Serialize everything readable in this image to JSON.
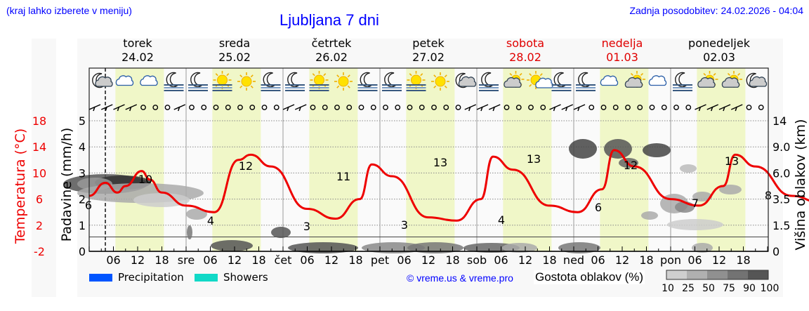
{
  "header": {
    "menu_hint": "(kraj lahko izberete v meniju)",
    "title": "Ljubljana 7 dni",
    "last_update": "Zadnja posodobitev: 24.02.2026 - 04:04"
  },
  "days": [
    {
      "name": "torek",
      "date": "24.02",
      "weekend": false
    },
    {
      "name": "sreda",
      "date": "25.02",
      "weekend": false
    },
    {
      "name": "četrtek",
      "date": "26.02",
      "weekend": false
    },
    {
      "name": "petek",
      "date": "27.02",
      "weekend": false
    },
    {
      "name": "sobota",
      "date": "28.02",
      "weekend": true
    },
    {
      "name": "nedelja",
      "date": "01.03",
      "weekend": true
    },
    {
      "name": "ponedeljek",
      "date": "02.03",
      "weekend": false
    }
  ],
  "weather_icons": [
    "night-partly-cloudy",
    "cloudy",
    "cloudy",
    "night-fog",
    "night-fog",
    "sun-fog",
    "sun",
    "night-fog",
    "night-fog",
    "sun-fog",
    "sun",
    "night-fog",
    "night-fog",
    "sun-fog",
    "sun",
    "night-partly-cloudy",
    "night-fog",
    "partly-cloudy",
    "sun-small-cloud",
    "night-fog",
    "night-fog",
    "cloudy",
    "partly-cloudy",
    "cloudy",
    "night-fog",
    "partly-cloudy",
    "partly-cloudy",
    "night-partly-cloudy"
  ],
  "x_axis": {
    "labels": [
      "06",
      "12",
      "18",
      "sre",
      "06",
      "12",
      "18",
      "čet",
      "06",
      "12",
      "18",
      "pet",
      "06",
      "12",
      "18",
      "sob",
      "06",
      "12",
      "18",
      "ned",
      "06",
      "12",
      "18",
      "pon",
      "06",
      "12",
      "18"
    ]
  },
  "axes": {
    "temperature_label": "Temperatura (°C)",
    "temperature_ticks": [
      "18",
      "14",
      "10",
      "6",
      "2",
      "-2"
    ],
    "precip_label": "Padavine (mm/h)",
    "precip_ticks": [
      "5",
      "4",
      "3",
      "2",
      "1",
      "0"
    ],
    "cloud_label": "Višina oblakov (km)",
    "cloud_ticks": [
      "14",
      "9.0",
      "6.0",
      "3.5",
      "1.5",
      "0"
    ]
  },
  "legend": {
    "precipitation": {
      "label": "Precipitation",
      "color": "#0055ff"
    },
    "showers": {
      "label": "Showers",
      "color": "#11d9c7"
    },
    "copyright": "© vreme.us & vreme.pro",
    "cloud_density_label": "Gostota oblakov (%)",
    "cloud_density_ticks": [
      "10",
      "25",
      "50",
      "75",
      "90",
      "100"
    ],
    "cloud_density_colors": [
      "#cfcfcf",
      "#b0b0b0",
      "#909090",
      "#737373",
      "#555555"
    ]
  },
  "colors": {
    "temperature_line": "#ee0000",
    "daytime_band": "#f0f7c8",
    "weekend_text": "#e00000",
    "header_text": "#0000ff"
  },
  "chart_data": {
    "type": "line",
    "title": "Ljubljana 7 dni",
    "xlabel": "",
    "ylabel": "Temperatura (°C)",
    "ylim": [
      -2,
      18
    ],
    "grid": true,
    "series": [
      {
        "name": "Temperatura (°C)",
        "hours": [
          0,
          4,
          7,
          9,
          13,
          15,
          18,
          24,
          31,
          37,
          40,
          45,
          54,
          61,
          67,
          70,
          75,
          84,
          91,
          97,
          100,
          105,
          114,
          121,
          127,
          130,
          135,
          144,
          151,
          157,
          160,
          165,
          174,
          181,
          188
        ],
        "values": [
          6.5,
          8.5,
          7,
          8,
          10.3,
          9,
          7,
          5,
          4,
          12,
          12.8,
          11,
          4.5,
          3,
          6,
          11.3,
          9.5,
          3.2,
          2.7,
          6,
          12.5,
          10.5,
          5,
          4,
          7.5,
          13.5,
          11,
          6,
          5,
          8,
          12.8,
          11,
          6.5,
          5.5,
          8
        ]
      }
    ],
    "annotations": [
      {
        "label": "6",
        "type": "min",
        "day": "torek"
      },
      {
        "label": "10",
        "type": "max",
        "day": "torek"
      },
      {
        "label": "4",
        "type": "min",
        "day": "sreda"
      },
      {
        "label": "12",
        "type": "max",
        "day": "sreda"
      },
      {
        "label": "3",
        "type": "min",
        "day": "četrtek"
      },
      {
        "label": "11",
        "type": "max",
        "day": "četrtek"
      },
      {
        "label": "3",
        "type": "min",
        "day": "petek"
      },
      {
        "label": "13",
        "type": "max",
        "day": "petek"
      },
      {
        "label": "4",
        "type": "min",
        "day": "sobota"
      },
      {
        "label": "13",
        "type": "max",
        "day": "sobota"
      },
      {
        "label": "6",
        "type": "min",
        "day": "nedelja"
      },
      {
        "label": "12",
        "type": "max",
        "day": "nedelja"
      },
      {
        "label": "7",
        "type": "min",
        "day": "ponedeljek"
      },
      {
        "label": "13",
        "type": "max",
        "day": "ponedeljek"
      },
      {
        "label": "8",
        "type": "end",
        "day": "ponedeljek"
      }
    ],
    "secondary_axes": {
      "precipitation_mm_h": {
        "ticks": [
          0,
          1,
          2,
          3,
          4,
          5
        ]
      },
      "cloud_height_km": {
        "ticks": [
          0,
          1.5,
          3.5,
          6.0,
          9.0,
          14
        ]
      }
    },
    "precipitation_values": "none visible"
  }
}
